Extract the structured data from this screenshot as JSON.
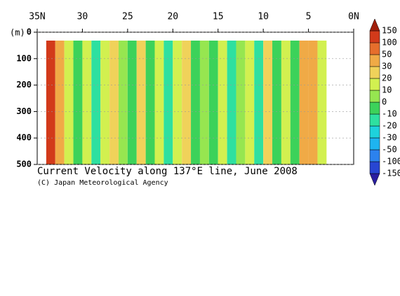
{
  "chart_data": {
    "type": "section",
    "title": "Current Velocity along 137°E line, June 2008",
    "subtitle": "(C) Japan Meteorological Agency",
    "y_label": "(m)",
    "xlim": [
      35,
      0
    ],
    "xticks": [
      {
        "value": 35,
        "label": "35N"
      },
      30,
      25,
      20,
      15,
      10,
      5,
      {
        "value": 0,
        "label": "0N"
      }
    ],
    "ylim": [
      0,
      500
    ],
    "yticks": [
      0,
      100,
      200,
      300,
      400,
      500
    ],
    "x": [
      33.5,
      32.5,
      31.5,
      30.5,
      29.5,
      28.5,
      27.5,
      26.5,
      25.5,
      24.5,
      23.5,
      22.5,
      21.5,
      20.5,
      19.5,
      18.5,
      17.5,
      16.5,
      15.5,
      14.5,
      13.5,
      12.5,
      11.5,
      10.5,
      9.5,
      8.5,
      7.5,
      6.5,
      5.5,
      4.5,
      3.5
    ],
    "values": [
      120,
      40,
      15,
      -5,
      10,
      -15,
      15,
      25,
      5,
      -10,
      20,
      -5,
      10,
      -15,
      15,
      25,
      -10,
      5,
      -5,
      15,
      -20,
      5,
      15,
      -15,
      25,
      -10,
      15,
      -5,
      40,
      30,
      10
    ],
    "colorbar": {
      "levels": [
        -150,
        -100,
        -50,
        -30,
        -20,
        -10,
        0,
        10,
        20,
        30,
        50,
        100,
        150
      ],
      "colors": [
        "#2a1ea0",
        "#2846d2",
        "#2c82ee",
        "#1eb4f0",
        "#1ed2dc",
        "#2ee0a0",
        "#3cd25a",
        "#96e650",
        "#d2f050",
        "#f0d25a",
        "#f0aa46",
        "#e66e2c",
        "#d23a1a",
        "#a01e0a"
      ]
    }
  }
}
